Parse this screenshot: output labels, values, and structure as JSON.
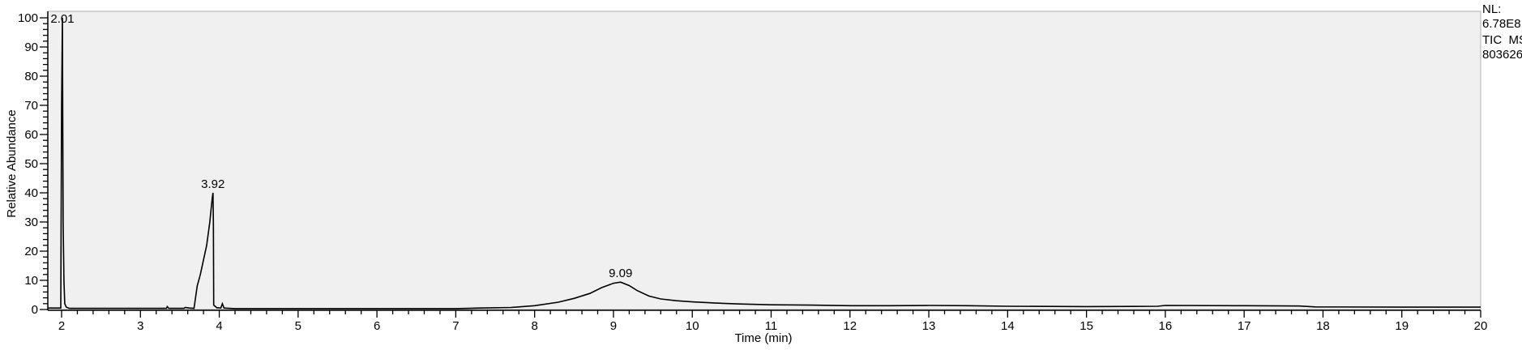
{
  "chart_data": {
    "type": "line",
    "title": "",
    "xlabel": "Time (min)",
    "ylabel": "Relative Abundance",
    "xlim": [
      1.83,
      20
    ],
    "ylim": [
      0,
      100
    ],
    "x_ticks": [
      2,
      3,
      4,
      5,
      6,
      7,
      8,
      9,
      10,
      11,
      12,
      13,
      14,
      15,
      16,
      17,
      18,
      19,
      20
    ],
    "y_ticks": [
      0,
      10,
      20,
      30,
      40,
      50,
      60,
      70,
      80,
      90,
      100
    ],
    "grid": false,
    "background": "#f0f0f0",
    "line_color": "#000000",
    "info_labels": [
      "NL:",
      "6.78E8",
      "TIC  MS",
      "803626"
    ],
    "peak_labels": [
      {
        "x": 2.01,
        "y": 100,
        "label": "2.01"
      },
      {
        "x": 3.92,
        "y": 40,
        "label": "3.92"
      },
      {
        "x": 9.09,
        "y": 9.4,
        "label": "9.09"
      }
    ],
    "series": [
      {
        "points": [
          [
            1.83,
            0.5
          ],
          [
            1.99,
            0.5
          ],
          [
            2.0,
            70
          ],
          [
            2.01,
            100
          ],
          [
            2.015,
            60
          ],
          [
            2.02,
            30
          ],
          [
            2.03,
            10
          ],
          [
            2.04,
            2
          ],
          [
            2.06,
            0.8
          ],
          [
            2.1,
            0.4
          ],
          [
            2.5,
            0.4
          ],
          [
            3.0,
            0.4
          ],
          [
            3.33,
            0.4
          ],
          [
            3.34,
            1.0
          ],
          [
            3.36,
            0.4
          ],
          [
            3.55,
            0.4
          ],
          [
            3.57,
            0.7
          ],
          [
            3.62,
            0.5
          ],
          [
            3.68,
            0.4
          ],
          [
            3.72,
            8
          ],
          [
            3.76,
            12
          ],
          [
            3.8,
            17
          ],
          [
            3.84,
            22
          ],
          [
            3.88,
            30
          ],
          [
            3.91,
            38
          ],
          [
            3.92,
            40
          ],
          [
            3.925,
            30
          ],
          [
            3.93,
            1.5
          ],
          [
            3.97,
            0.6
          ],
          [
            4.02,
            0.5
          ],
          [
            4.04,
            2
          ],
          [
            4.06,
            0.5
          ],
          [
            4.2,
            0.3
          ],
          [
            5.0,
            0.3
          ],
          [
            6.0,
            0.3
          ],
          [
            7.0,
            0.3
          ],
          [
            7.3,
            0.5
          ],
          [
            7.7,
            0.7
          ],
          [
            8.0,
            1.3
          ],
          [
            8.3,
            2.5
          ],
          [
            8.5,
            3.8
          ],
          [
            8.7,
            5.5
          ],
          [
            8.85,
            7.5
          ],
          [
            9.0,
            9.0
          ],
          [
            9.09,
            9.4
          ],
          [
            9.2,
            8.2
          ],
          [
            9.3,
            6.5
          ],
          [
            9.45,
            4.6
          ],
          [
            9.6,
            3.6
          ],
          [
            9.8,
            3.0
          ],
          [
            10.0,
            2.6
          ],
          [
            10.3,
            2.2
          ],
          [
            10.6,
            1.9
          ],
          [
            11.0,
            1.6
          ],
          [
            11.5,
            1.5
          ],
          [
            12.0,
            1.3
          ],
          [
            12.5,
            1.3
          ],
          [
            13.0,
            1.4
          ],
          [
            13.5,
            1.3
          ],
          [
            14.0,
            1.1
          ],
          [
            15.0,
            1.0
          ],
          [
            15.9,
            1.1
          ],
          [
            16.0,
            1.4
          ],
          [
            17.0,
            1.3
          ],
          [
            17.7,
            1.2
          ],
          [
            17.9,
            0.9
          ],
          [
            19.0,
            0.8
          ],
          [
            20.0,
            0.8
          ]
        ]
      }
    ]
  }
}
